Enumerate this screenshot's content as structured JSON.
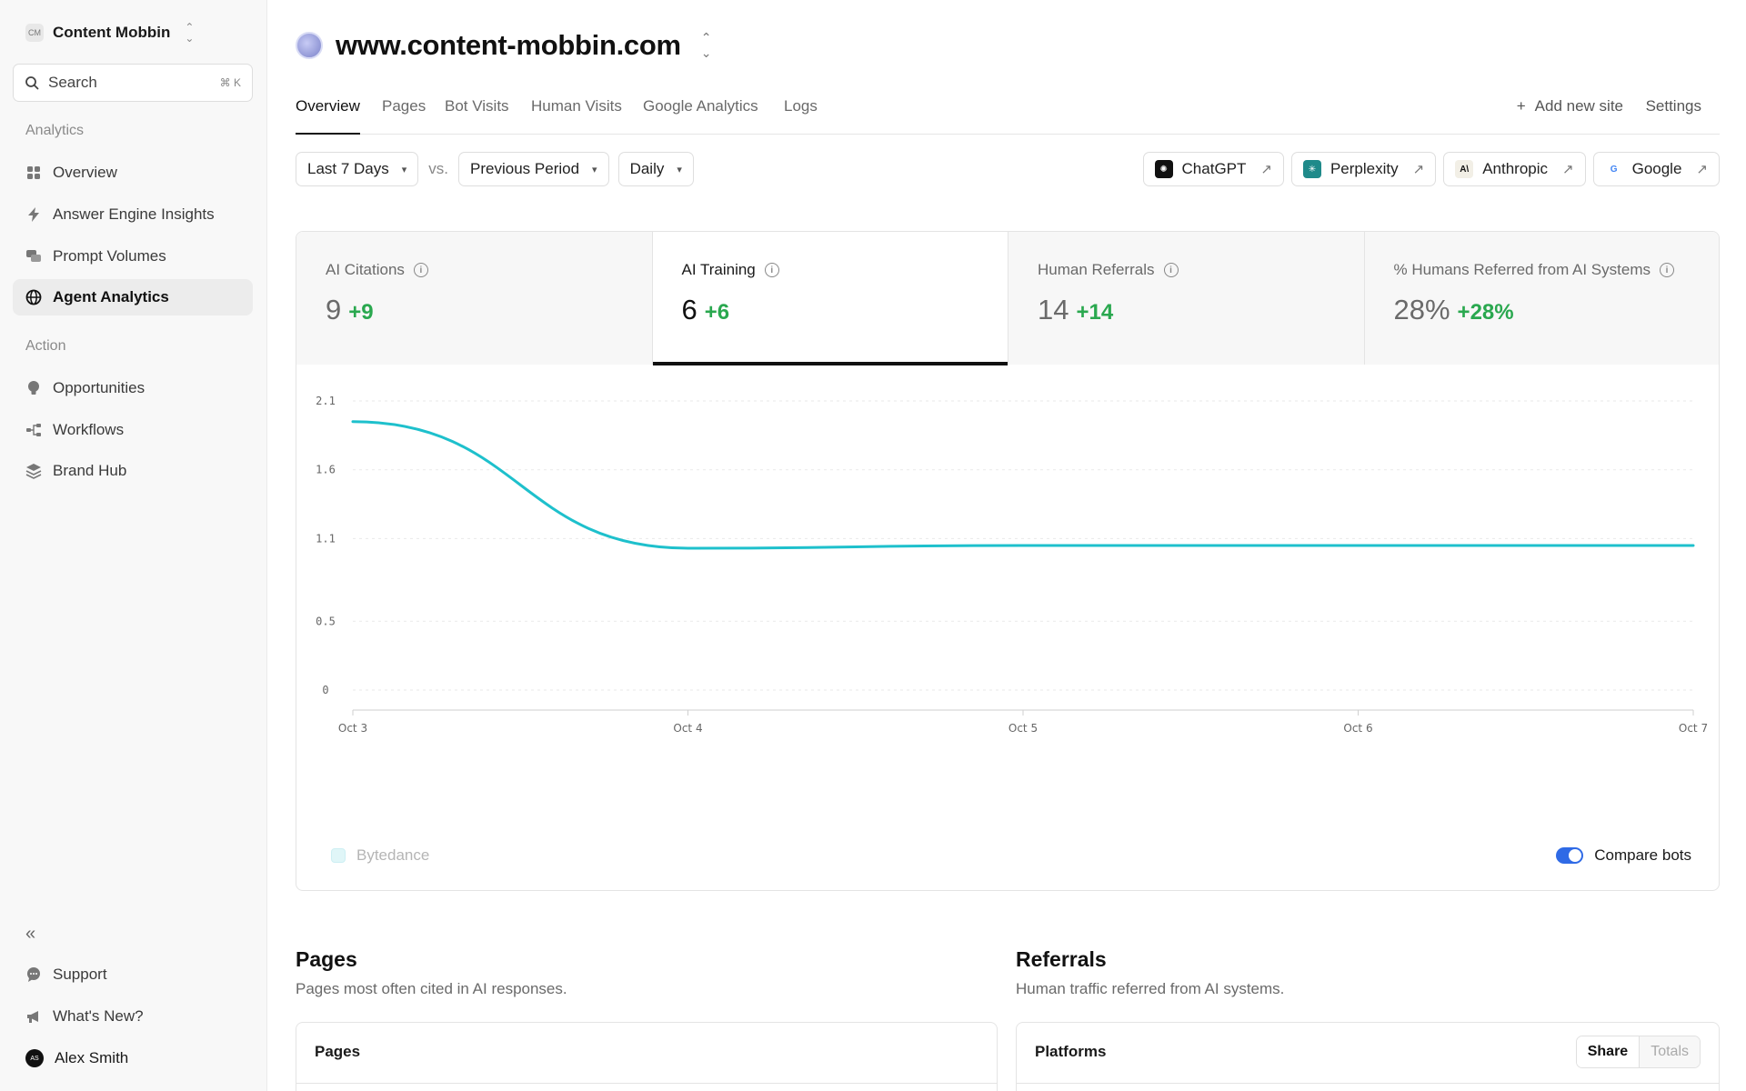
{
  "workspace": {
    "initials": "CM",
    "name": "Content Mobbin"
  },
  "search": {
    "label": "Search",
    "shortcut": "⌘ K"
  },
  "sidebar": {
    "analytics_label": "Analytics",
    "analytics_items": [
      {
        "label": "Overview",
        "icon": "grid-icon"
      },
      {
        "label": "Answer Engine Insights",
        "icon": "bolt-icon"
      },
      {
        "label": "Prompt Volumes",
        "icon": "chat-bubbles-icon"
      },
      {
        "label": "Agent Analytics",
        "icon": "globe-icon",
        "active": true
      }
    ],
    "action_label": "Action",
    "action_items": [
      {
        "label": "Opportunities",
        "icon": "lightbulb-icon"
      },
      {
        "label": "Workflows",
        "icon": "workflow-icon"
      },
      {
        "label": "Brand Hub",
        "icon": "layers-icon"
      }
    ],
    "footer_items": [
      {
        "label": "Support",
        "icon": "chat-icon"
      },
      {
        "label": "What's New?",
        "icon": "megaphone-icon"
      }
    ],
    "user": {
      "initials": "AS",
      "name": "Alex Smith"
    }
  },
  "site": {
    "domain": "www.content-mobbin.com"
  },
  "tabs": [
    "Overview",
    "Pages",
    "Bot Visits",
    "Human Visits",
    "Google Analytics",
    "Logs"
  ],
  "tab_actions": {
    "add_site": "Add new site",
    "settings": "Settings"
  },
  "filters": {
    "range": "Last 7 Days",
    "vs": "vs.",
    "compare": "Previous Period",
    "granularity": "Daily"
  },
  "bots": [
    {
      "name": "ChatGPT",
      "color": "#111111"
    },
    {
      "name": "Perplexity",
      "color": "#1f8a8a"
    },
    {
      "name": "Anthropic",
      "color": "#f2efe6"
    },
    {
      "name": "Google",
      "color": "#ffffff"
    }
  ],
  "metrics": [
    {
      "label": "AI Citations",
      "value": "9",
      "delta": "+9"
    },
    {
      "label": "AI Training",
      "value": "6",
      "delta": "+6",
      "active": true
    },
    {
      "label": "Human Referrals",
      "value": "14",
      "delta": "+14"
    },
    {
      "label": "% Humans Referred from AI Systems",
      "value": "28%",
      "delta": "+28%"
    }
  ],
  "chart_data": {
    "type": "line",
    "x": [
      "Oct 3",
      "Oct 4",
      "Oct 5",
      "Oct 6",
      "Oct 7"
    ],
    "y_ticks": [
      "2.1",
      "1.6",
      "1.1",
      "0.5",
      "0"
    ],
    "ylim": [
      0,
      2.1
    ],
    "series": [
      {
        "name": "Bytedance",
        "values": [
          1.95,
          1.03,
          1.05,
          1.05,
          1.05
        ],
        "color": "#1ec0cc"
      }
    ],
    "grid": true,
    "legend": "bottom-left"
  },
  "legend_label": "Bytedance",
  "compare_bots": "Compare bots",
  "pages_section": {
    "title": "Pages",
    "subtitle": "Pages most often cited in AI responses.",
    "header": "Pages"
  },
  "referrals_section": {
    "title": "Referrals",
    "subtitle": "Human traffic referred from AI systems.",
    "header": "Platforms",
    "toggle_on": "Share",
    "toggle_off": "Totals"
  }
}
